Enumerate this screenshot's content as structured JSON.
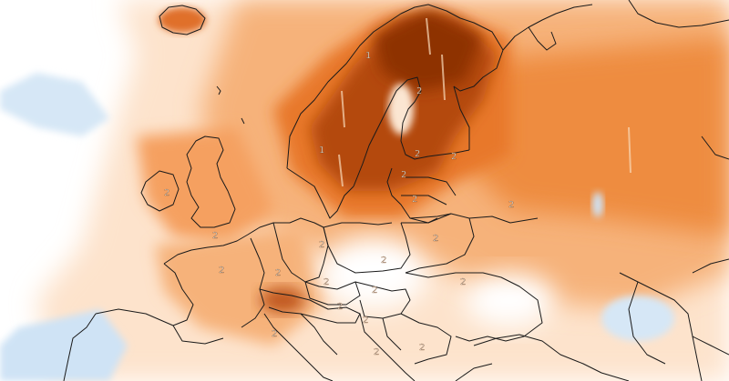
{
  "map": {
    "description_color_scale": {
      "strong_warm": "#9a3a05",
      "warm": "#e8782a",
      "mild_warm": "#f6b27a",
      "faint_warm": "#fde3cc",
      "neutral": "#ffffff",
      "cool": "#cfe3f5",
      "cold": "#9dc4e8"
    },
    "grid_labels": [
      "1",
      "2",
      "1",
      "2",
      "2",
      "2",
      "2",
      "2",
      "2",
      "2",
      "2",
      "2",
      "2",
      "2",
      "2",
      "2",
      "2",
      "2",
      "2",
      "2",
      "2",
      "2",
      "2"
    ],
    "country_borders_color": "#1a1a1a"
  }
}
